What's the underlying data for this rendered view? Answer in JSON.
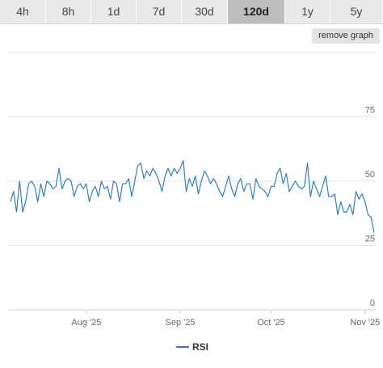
{
  "tabs": [
    {
      "label": "4h",
      "active": false
    },
    {
      "label": "8h",
      "active": false
    },
    {
      "label": "1d",
      "active": false
    },
    {
      "label": "7d",
      "active": false
    },
    {
      "label": "30d",
      "active": false
    },
    {
      "label": "120d",
      "active": true
    },
    {
      "label": "1y",
      "active": false
    },
    {
      "label": "5y",
      "active": false
    }
  ],
  "remove_graph_label": "remove graph",
  "colors": {
    "line": "#2f7ebc",
    "grid": "#e6e6e6"
  },
  "chart_data": {
    "type": "line",
    "y_ticks": [
      0,
      25,
      50,
      75
    ],
    "ylim": [
      0,
      100
    ],
    "x_ticks": [
      {
        "label": "Aug '25",
        "date": "2025-08-01"
      },
      {
        "label": "Sep '25",
        "date": "2025-09-01"
      },
      {
        "label": "Oct '25",
        "date": "2025-10-01"
      },
      {
        "label": "Nov '25",
        "date": "2025-11-01"
      }
    ],
    "x_range": [
      "2025-07-07",
      "2025-11-04"
    ],
    "legend": {
      "position": "bottom-center"
    },
    "series": [
      {
        "name": "RSI",
        "points": [
          [
            "2025-07-07",
            42
          ],
          [
            "2025-07-08",
            46
          ],
          [
            "2025-07-09",
            38
          ],
          [
            "2025-07-10",
            50
          ],
          [
            "2025-07-11",
            38
          ],
          [
            "2025-07-12",
            42
          ],
          [
            "2025-07-13",
            49
          ],
          [
            "2025-07-14",
            50
          ],
          [
            "2025-07-15",
            48
          ],
          [
            "2025-07-16",
            42
          ],
          [
            "2025-07-17",
            49
          ],
          [
            "2025-07-18",
            44
          ],
          [
            "2025-07-19",
            50
          ],
          [
            "2025-07-20",
            49
          ],
          [
            "2025-07-21",
            47
          ],
          [
            "2025-07-22",
            48
          ],
          [
            "2025-07-23",
            55
          ],
          [
            "2025-07-24",
            47
          ],
          [
            "2025-07-25",
            50
          ],
          [
            "2025-07-26",
            51
          ],
          [
            "2025-07-27",
            50
          ],
          [
            "2025-07-28",
            44
          ],
          [
            "2025-07-29",
            48
          ],
          [
            "2025-07-30",
            49
          ],
          [
            "2025-07-31",
            47
          ],
          [
            "2025-08-01",
            49
          ],
          [
            "2025-08-02",
            42
          ],
          [
            "2025-08-03",
            46
          ],
          [
            "2025-08-04",
            48
          ],
          [
            "2025-08-05",
            44
          ],
          [
            "2025-08-06",
            50
          ],
          [
            "2025-08-07",
            47
          ],
          [
            "2025-08-08",
            48
          ],
          [
            "2025-08-09",
            43
          ],
          [
            "2025-08-10",
            50
          ],
          [
            "2025-08-11",
            49
          ],
          [
            "2025-08-12",
            42
          ],
          [
            "2025-08-13",
            49
          ],
          [
            "2025-08-14",
            49
          ],
          [
            "2025-08-15",
            51
          ],
          [
            "2025-08-16",
            44
          ],
          [
            "2025-08-17",
            50
          ],
          [
            "2025-08-18",
            56
          ],
          [
            "2025-08-19",
            57
          ],
          [
            "2025-08-20",
            51
          ],
          [
            "2025-08-21",
            54
          ],
          [
            "2025-08-22",
            52
          ],
          [
            "2025-08-23",
            55
          ],
          [
            "2025-08-24",
            53
          ],
          [
            "2025-08-25",
            50
          ],
          [
            "2025-08-26",
            46
          ],
          [
            "2025-08-27",
            52
          ],
          [
            "2025-08-28",
            55
          ],
          [
            "2025-08-29",
            52
          ],
          [
            "2025-08-30",
            55
          ],
          [
            "2025-08-31",
            53
          ],
          [
            "2025-09-01",
            55
          ],
          [
            "2025-09-02",
            58
          ],
          [
            "2025-09-03",
            46
          ],
          [
            "2025-09-04",
            51
          ],
          [
            "2025-09-05",
            48
          ],
          [
            "2025-09-06",
            52
          ],
          [
            "2025-09-07",
            45
          ],
          [
            "2025-09-08",
            50
          ],
          [
            "2025-09-09",
            54
          ],
          [
            "2025-09-10",
            52
          ],
          [
            "2025-09-11",
            49
          ],
          [
            "2025-09-12",
            51
          ],
          [
            "2025-09-13",
            49
          ],
          [
            "2025-09-14",
            46
          ],
          [
            "2025-09-15",
            44
          ],
          [
            "2025-09-16",
            48
          ],
          [
            "2025-09-17",
            52
          ],
          [
            "2025-09-18",
            47
          ],
          [
            "2025-09-19",
            44
          ],
          [
            "2025-09-20",
            49
          ],
          [
            "2025-09-21",
            51
          ],
          [
            "2025-09-22",
            46
          ],
          [
            "2025-09-23",
            49
          ],
          [
            "2025-09-24",
            49
          ],
          [
            "2025-09-25",
            43
          ],
          [
            "2025-09-26",
            51
          ],
          [
            "2025-09-27",
            48
          ],
          [
            "2025-09-28",
            47
          ],
          [
            "2025-09-29",
            46
          ],
          [
            "2025-09-30",
            44
          ],
          [
            "2025-10-01",
            48
          ],
          [
            "2025-10-02",
            48
          ],
          [
            "2025-10-03",
            53
          ],
          [
            "2025-10-04",
            55
          ],
          [
            "2025-10-05",
            49
          ],
          [
            "2025-10-06",
            53
          ],
          [
            "2025-10-07",
            46
          ],
          [
            "2025-10-08",
            48
          ],
          [
            "2025-10-09",
            50
          ],
          [
            "2025-10-10",
            48
          ],
          [
            "2025-10-11",
            47
          ],
          [
            "2025-10-12",
            48
          ],
          [
            "2025-10-13",
            57
          ],
          [
            "2025-10-14",
            44
          ],
          [
            "2025-10-15",
            50
          ],
          [
            "2025-10-16",
            47
          ],
          [
            "2025-10-17",
            44
          ],
          [
            "2025-10-18",
            48
          ],
          [
            "2025-10-19",
            52
          ],
          [
            "2025-10-20",
            44
          ],
          [
            "2025-10-21",
            44
          ],
          [
            "2025-10-22",
            45
          ],
          [
            "2025-10-23",
            37
          ],
          [
            "2025-10-24",
            42
          ],
          [
            "2025-10-25",
            38
          ],
          [
            "2025-10-26",
            38
          ],
          [
            "2025-10-27",
            41
          ],
          [
            "2025-10-28",
            37
          ],
          [
            "2025-10-29",
            46
          ],
          [
            "2025-10-30",
            43
          ],
          [
            "2025-10-31",
            45
          ],
          [
            "2025-11-01",
            42
          ],
          [
            "2025-11-02",
            37
          ],
          [
            "2025-11-03",
            36
          ],
          [
            "2025-11-04",
            30
          ]
        ]
      }
    ]
  }
}
